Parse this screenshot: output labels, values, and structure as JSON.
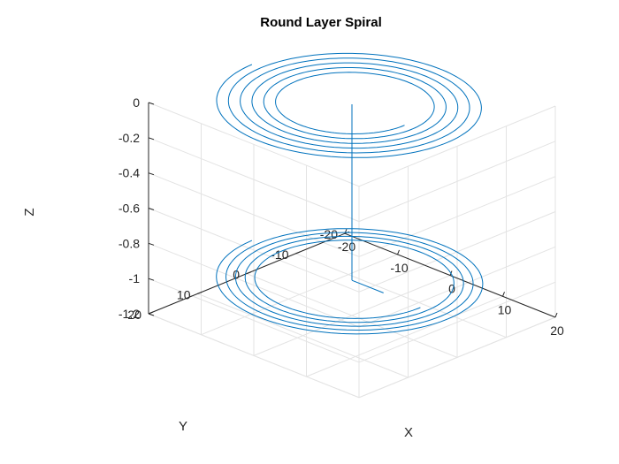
{
  "chart_data": {
    "type": "line3d",
    "title": "Round Layer Spiral",
    "xlabel": "X",
    "ylabel": "Y",
    "zlabel": "Z",
    "xlim": [
      -20,
      20
    ],
    "ylim": [
      -20,
      20
    ],
    "zlim": [
      -1.2,
      0
    ],
    "x_ticks": [
      "-20",
      "-10",
      "0",
      "10",
      "20"
    ],
    "y_ticks": [
      "-20",
      "-10",
      "0",
      "10",
      "20"
    ],
    "z_ticks": [
      "-1.2",
      "-1",
      "-0.8",
      "-0.6",
      "-0.4",
      "-0.2",
      "0"
    ],
    "grid": true,
    "line_color": "#0072BD",
    "layers": [
      {
        "z": 0,
        "r_inner": 10,
        "r_outer": 19,
        "turns": 5.5
      },
      {
        "z": -1,
        "r_inner": 13,
        "r_outer": 19,
        "turns": 4.5
      }
    ],
    "connector": {
      "x": 0,
      "y": 0,
      "z_top": 0,
      "z_bottom": -1,
      "r_start": 13,
      "r_end": 6
    }
  }
}
